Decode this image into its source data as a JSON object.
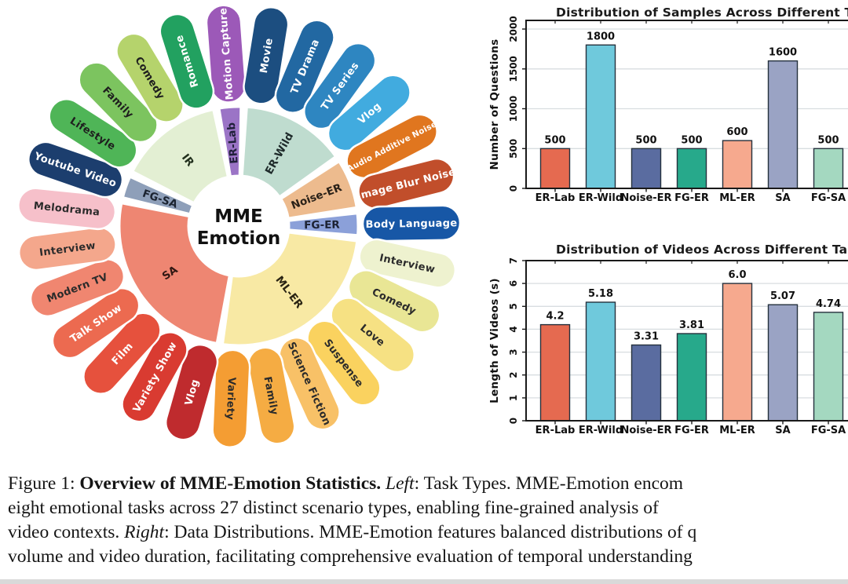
{
  "flower": {
    "center_label": {
      "line1": "MME",
      "line2": "Emotion"
    },
    "tasks": [
      {
        "label": "ER-Lab",
        "color": "#9B74C6",
        "text_color": "#20203a",
        "start_slot": 0,
        "slot_count": 1
      },
      {
        "label": "ER-Wild",
        "color": "#BFDCCF",
        "text_color": "#1e2a2a",
        "start_slot": 1,
        "slot_count": 4
      },
      {
        "label": "Noise-ER",
        "color": "#EDBB8E",
        "text_color": "#2a2118",
        "start_slot": 5,
        "slot_count": 2
      },
      {
        "label": "FG-ER",
        "color": "#8BA0D9",
        "text_color": "#1c2233",
        "start_slot": 7,
        "slot_count": 1
      },
      {
        "label": "ML-ER",
        "color": "#F8E9A4",
        "text_color": "#2a2413",
        "start_slot": 8,
        "slot_count": 7
      },
      {
        "label": "SA",
        "color": "#EE8672",
        "text_color": "#301712",
        "start_slot": 15,
        "slot_count": 7
      },
      {
        "label": "FG-SA",
        "color": "#8E9FB9",
        "text_color": "#1b2330",
        "start_slot": 22,
        "slot_count": 1
      },
      {
        "label": "IR",
        "color": "#E3EFD3",
        "text_color": "#22301d",
        "start_slot": 23,
        "slot_count": 4
      }
    ],
    "petals": [
      {
        "label": "Motion Capture",
        "color": "#9C59B8",
        "text_color": "#ffffff"
      },
      {
        "label": "Movie",
        "color": "#1C4E80",
        "text_color": "#ffffff"
      },
      {
        "label": "TV Drama",
        "color": "#2268A2",
        "text_color": "#ffffff"
      },
      {
        "label": "TV Series",
        "color": "#2E86C1",
        "text_color": "#ffffff"
      },
      {
        "label": "Vlog",
        "color": "#41ABDF",
        "text_color": "#ffffff"
      },
      {
        "label": "Audio Additive Noise",
        "color": "#E0761F",
        "text_color": "#ffffff"
      },
      {
        "label": "Image Blur Noise",
        "color": "#C14E2B",
        "text_color": "#ffffff"
      },
      {
        "label": "Body Language",
        "color": "#1757A6",
        "text_color": "#ffffff"
      },
      {
        "label": "Interview",
        "color": "#EEF2CF",
        "text_color": "#2b2b2b"
      },
      {
        "label": "Comedy",
        "color": "#E9E695",
        "text_color": "#2b2b2b"
      },
      {
        "label": "Love",
        "color": "#F6E183",
        "text_color": "#2b2b2b"
      },
      {
        "label": "Suspense",
        "color": "#FAD25F",
        "text_color": "#2b2b2b"
      },
      {
        "label": "Science Fiction",
        "color": "#F8C167",
        "text_color": "#2b2b2b"
      },
      {
        "label": "Family",
        "color": "#F5AC43",
        "text_color": "#2b2b2b"
      },
      {
        "label": "Variety",
        "color": "#F49D33",
        "text_color": "#2b2b2b"
      },
      {
        "label": "Vlog",
        "color": "#BF2B2E",
        "text_color": "#ffffff"
      },
      {
        "label": "Variety Show",
        "color": "#D93B31",
        "text_color": "#ffffff"
      },
      {
        "label": "Film",
        "color": "#E6513D",
        "text_color": "#ffffff"
      },
      {
        "label": "Talk Show",
        "color": "#EC6A50",
        "text_color": "#ffffff"
      },
      {
        "label": "Modern TV",
        "color": "#F08670",
        "text_color": "#2b2b2b"
      },
      {
        "label": "Interview",
        "color": "#F4A78C",
        "text_color": "#2b2b2b"
      },
      {
        "label": "Melodrama",
        "color": "#F6C0CA",
        "text_color": "#2b2b2b"
      },
      {
        "label": "Youtube Video",
        "color": "#1C3E6E",
        "text_color": "#ffffff"
      },
      {
        "label": "Lifestyle",
        "color": "#4FB557",
        "text_color": "#1e1e1e"
      },
      {
        "label": "Family",
        "color": "#7CC45F",
        "text_color": "#1e1e1e"
      },
      {
        "label": "Comedy",
        "color": "#B5D36C",
        "text_color": "#1e1e1e"
      },
      {
        "label": "Romance",
        "color": "#22A160",
        "text_color": "#ffffff"
      }
    ]
  },
  "chart_data": [
    {
      "type": "bar",
      "title": "Distribution of Samples Across Different Ta",
      "ylabel": "Number of Questions",
      "categories": [
        "ER-Lab",
        "ER-Wild",
        "Noise-ER",
        "FG-ER",
        "ML-ER",
        "SA",
        "FG-SA"
      ],
      "values": [
        500,
        1800,
        500,
        500,
        600,
        1600,
        500
      ],
      "value_labels": [
        "500",
        "1800",
        "500",
        "500",
        "600",
        "1600",
        "500"
      ],
      "bar_colors": [
        "#E56A50",
        "#6FC9DC",
        "#5A6CA0",
        "#27A98B",
        "#F6A98E",
        "#9AA3C4",
        "#A4D8C0"
      ],
      "yticks": [
        0,
        500,
        1000,
        1500,
        2000
      ],
      "ytick_labels": [
        "0",
        "500",
        "1000",
        "1500",
        "2000"
      ],
      "ylim": [
        0,
        2100
      ],
      "grid": true,
      "legend": "none"
    },
    {
      "type": "bar",
      "title": "Distribution of Videos Across Different Ta",
      "ylabel": "Length of Videos (s)",
      "categories": [
        "ER-Lab",
        "ER-Wild",
        "Noise-ER",
        "FG-ER",
        "ML-ER",
        "SA",
        "FG-SA"
      ],
      "values": [
        4.2,
        5.18,
        3.31,
        3.81,
        6.0,
        5.07,
        4.74
      ],
      "value_labels": [
        "4.2",
        "5.18",
        "3.31",
        "3.81",
        "6.0",
        "5.07",
        "4.74"
      ],
      "bar_colors": [
        "#E56A50",
        "#6FC9DC",
        "#5A6CA0",
        "#27A98B",
        "#F6A98E",
        "#9AA3C4",
        "#A4D8C0"
      ],
      "yticks": [
        0,
        1,
        2,
        3,
        4,
        5,
        6,
        7
      ],
      "ytick_labels": [
        "0",
        "1",
        "2",
        "3",
        "4",
        "5",
        "6",
        "7"
      ],
      "ylim": [
        0,
        7
      ],
      "grid": true,
      "legend": "none"
    }
  ],
  "caption": {
    "lines": [
      {
        "segments": [
          {
            "text": "Figure 1: ",
            "style": "normal"
          },
          {
            "text": "Overview of MME-Emotion Statistics.",
            "style": "bold"
          },
          {
            "text": " ",
            "style": "normal"
          },
          {
            "text": "Left",
            "style": "italic"
          },
          {
            "text": ": Task Types. MME-Emotion encom",
            "style": "normal"
          }
        ]
      },
      {
        "segments": [
          {
            "text": "eight emotional tasks across 27 distinct scenario types, enabling fine-grained analysis of",
            "style": "normal"
          }
        ]
      },
      {
        "segments": [
          {
            "text": "video contexts. ",
            "style": "normal"
          },
          {
            "text": "Right",
            "style": "italic"
          },
          {
            "text": ": Data Distributions. MME-Emotion features balanced distributions of q",
            "style": "normal"
          }
        ]
      },
      {
        "segments": [
          {
            "text": "volume and video duration, facilitating comprehensive evaluation of temporal understanding",
            "style": "normal"
          }
        ]
      }
    ]
  }
}
